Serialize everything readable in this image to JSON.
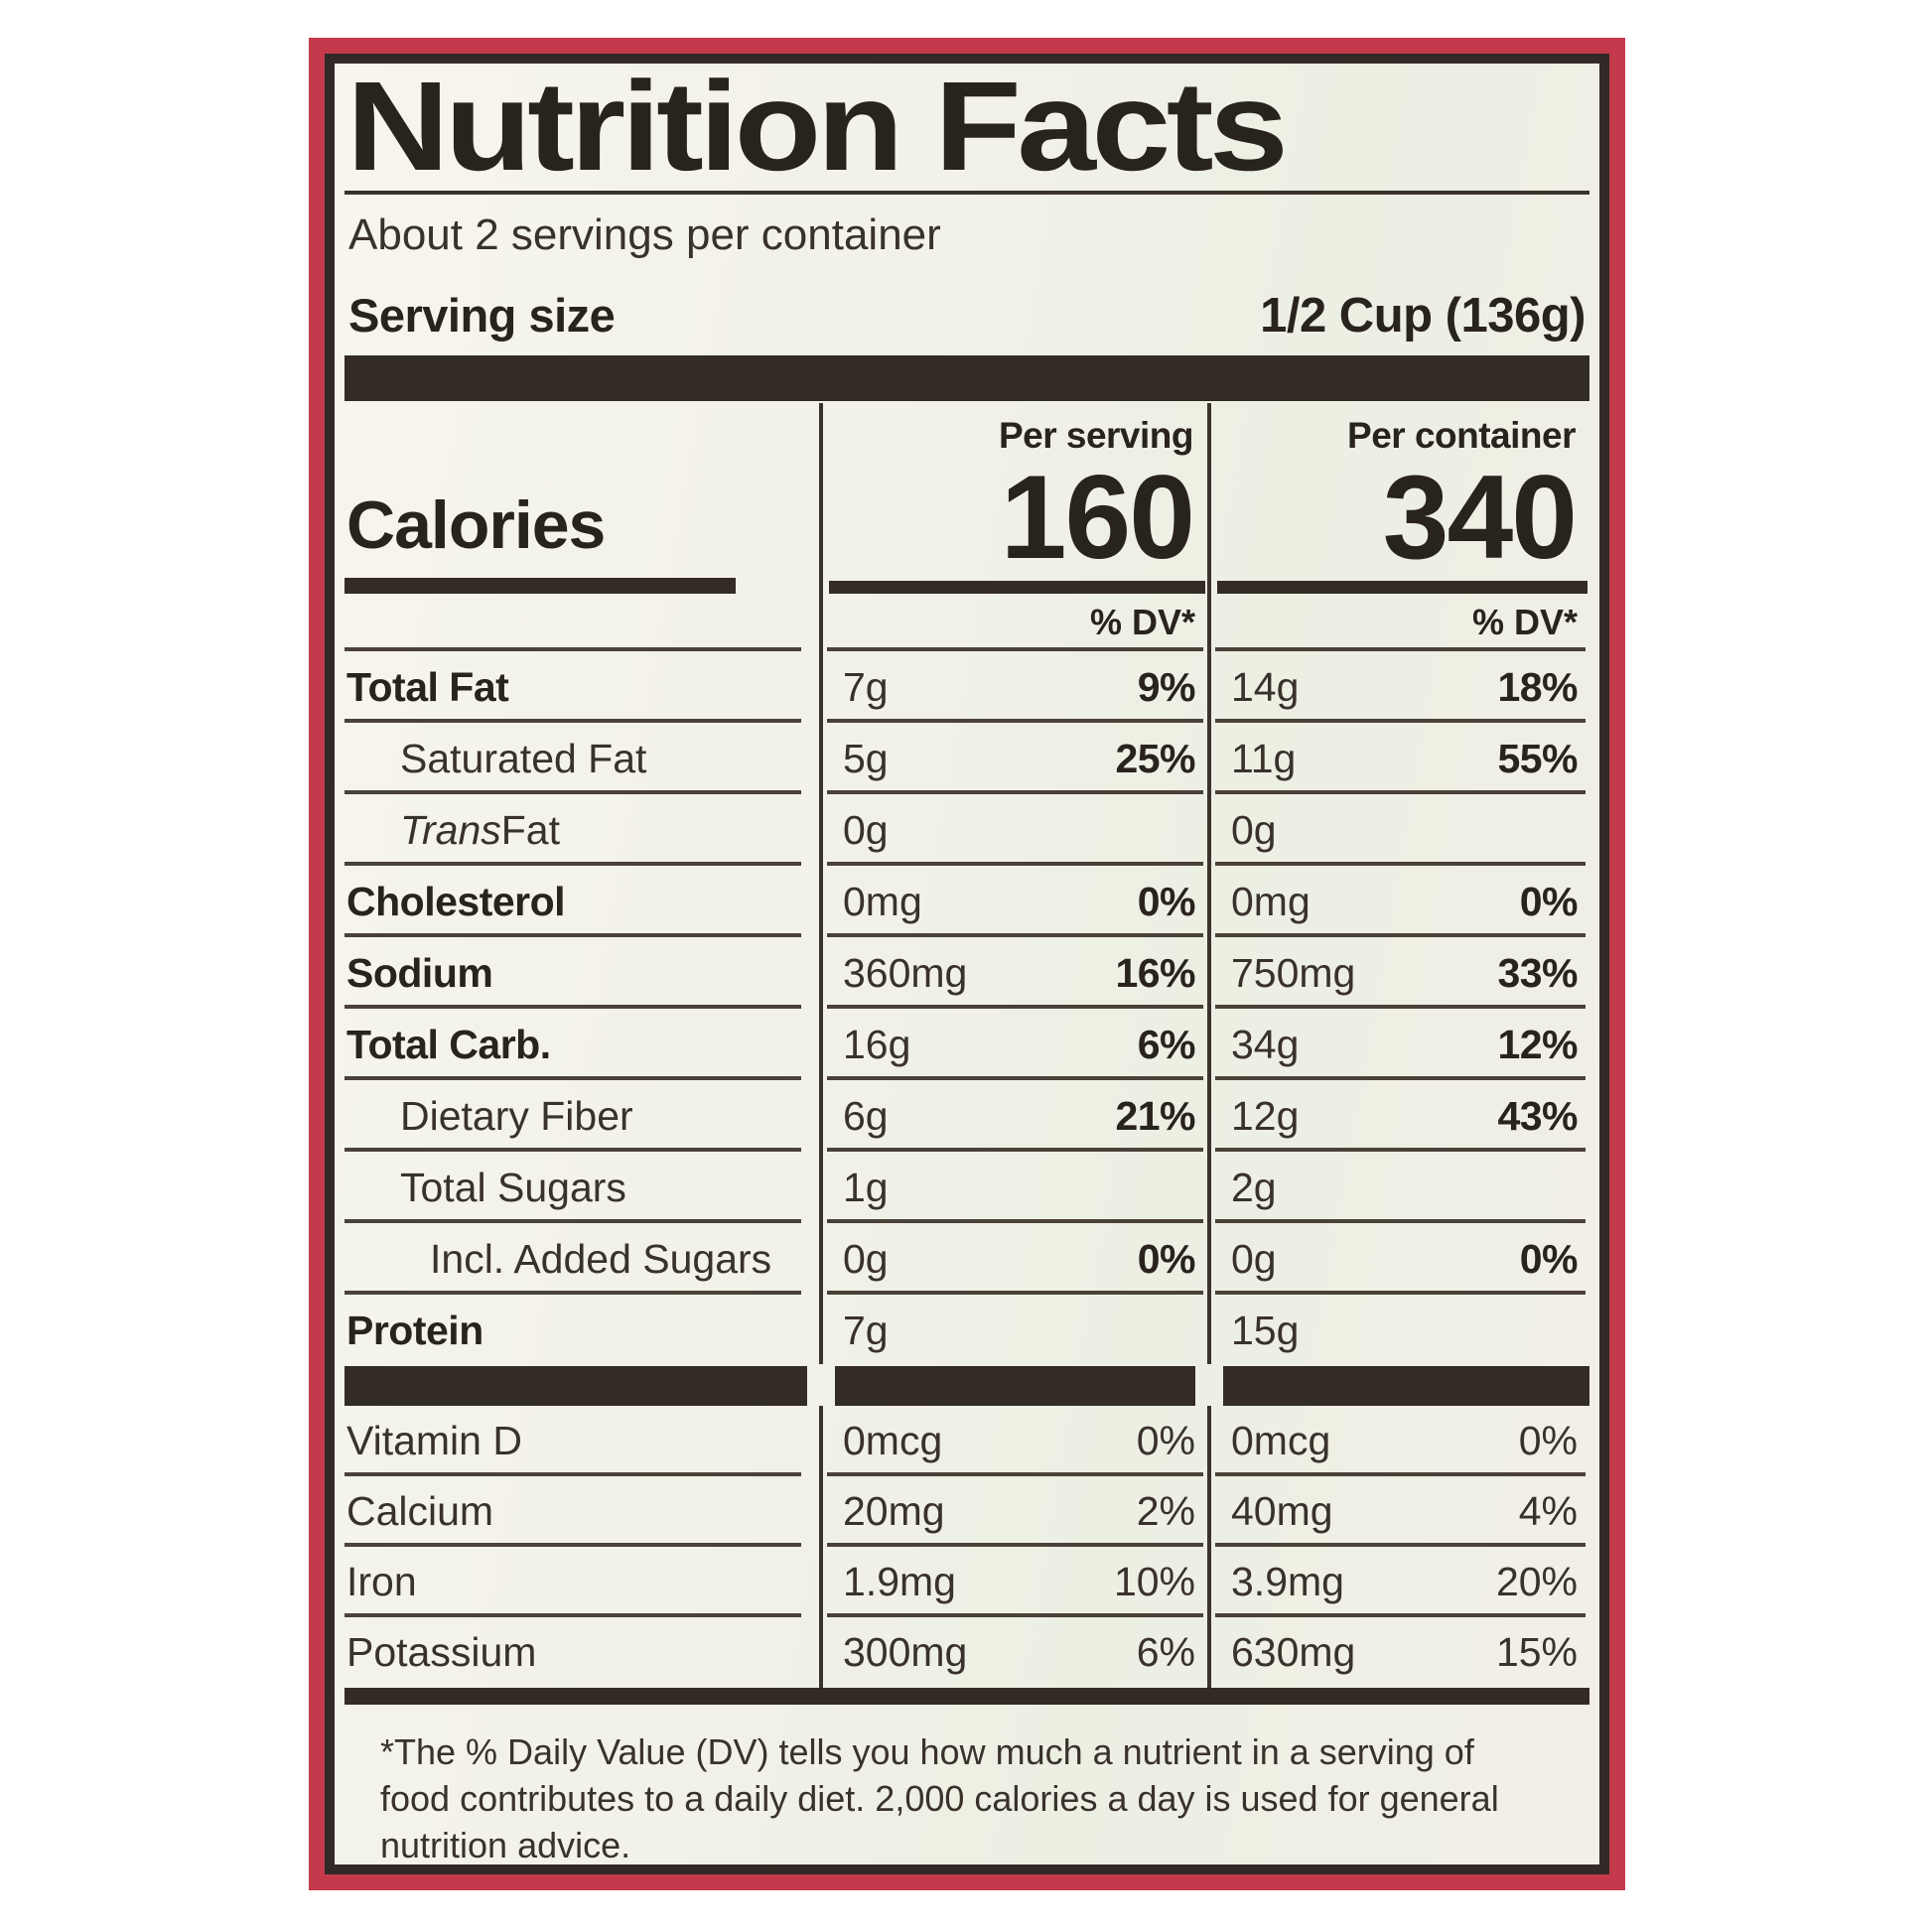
{
  "label": {
    "title": "Nutrition Facts",
    "servings_line": "About 2 servings per container",
    "serving_size": {
      "label": "Serving size",
      "value": "1/2 Cup (136g)"
    },
    "calories": {
      "row_label": "Calories",
      "per_serving_header": "Per serving",
      "per_container_header": "Per container",
      "per_serving": "160",
      "per_container": "340"
    },
    "dv_column_header": "% DV*",
    "nutrients": [
      {
        "name": "Total Fat",
        "bold": true,
        "indent": 0,
        "ps_amount": "7g",
        "ps_dv": "9%",
        "pc_amount": "14g",
        "pc_dv": "18%"
      },
      {
        "name": "Saturated Fat",
        "bold": false,
        "indent": 1,
        "ps_amount": "5g",
        "ps_dv": "25%",
        "pc_amount": "11g",
        "pc_dv": "55%"
      },
      {
        "name": "Trans Fat",
        "bold": false,
        "indent": 1,
        "italic_prefix": "Trans",
        "ps_amount": "0g",
        "ps_dv": "",
        "pc_amount": "0g",
        "pc_dv": ""
      },
      {
        "name": "Cholesterol",
        "bold": true,
        "indent": 0,
        "ps_amount": "0mg",
        "ps_dv": "0%",
        "pc_amount": "0mg",
        "pc_dv": "0%"
      },
      {
        "name": "Sodium",
        "bold": true,
        "indent": 0,
        "ps_amount": "360mg",
        "ps_dv": "16%",
        "pc_amount": "750mg",
        "pc_dv": "33%"
      },
      {
        "name": "Total Carb.",
        "bold": true,
        "indent": 0,
        "ps_amount": "16g",
        "ps_dv": "6%",
        "pc_amount": "34g",
        "pc_dv": "12%"
      },
      {
        "name": "Dietary Fiber",
        "bold": false,
        "indent": 1,
        "ps_amount": "6g",
        "ps_dv": "21%",
        "pc_amount": "12g",
        "pc_dv": "43%"
      },
      {
        "name": "Total Sugars",
        "bold": false,
        "indent": 1,
        "ps_amount": "1g",
        "ps_dv": "",
        "pc_amount": "2g",
        "pc_dv": ""
      },
      {
        "name": "Incl. Added Sugars",
        "bold": false,
        "indent": 2,
        "ps_amount": "0g",
        "ps_dv": "0%",
        "pc_amount": "0g",
        "pc_dv": "0%"
      },
      {
        "name": "Protein",
        "bold": true,
        "indent": 0,
        "ps_amount": "7g",
        "ps_dv": "",
        "pc_amount": "15g",
        "pc_dv": ""
      }
    ],
    "micronutrients": [
      {
        "name": "Vitamin D",
        "ps_amount": "0mcg",
        "ps_dv": "0%",
        "pc_amount": "0mcg",
        "pc_dv": "0%"
      },
      {
        "name": "Calcium",
        "ps_amount": "20mg",
        "ps_dv": "2%",
        "pc_amount": "40mg",
        "pc_dv": "4%"
      },
      {
        "name": "Iron",
        "ps_amount": "1.9mg",
        "ps_dv": "10%",
        "pc_amount": "3.9mg",
        "pc_dv": "20%"
      },
      {
        "name": "Potassium",
        "ps_amount": "300mg",
        "ps_dv": "6%",
        "pc_amount": "630mg",
        "pc_dv": "15%"
      }
    ],
    "footnote": "*The % Daily Value (DV) tells you how much a nutrient in a serving of food contributes to a daily diet. 2,000 calories a day is used for general nutrition advice."
  },
  "colors": {
    "frame_red": "#c43a4c",
    "border_dark": "#322a26",
    "ink": "#2e2722",
    "label_background": "#f3f1e8"
  }
}
